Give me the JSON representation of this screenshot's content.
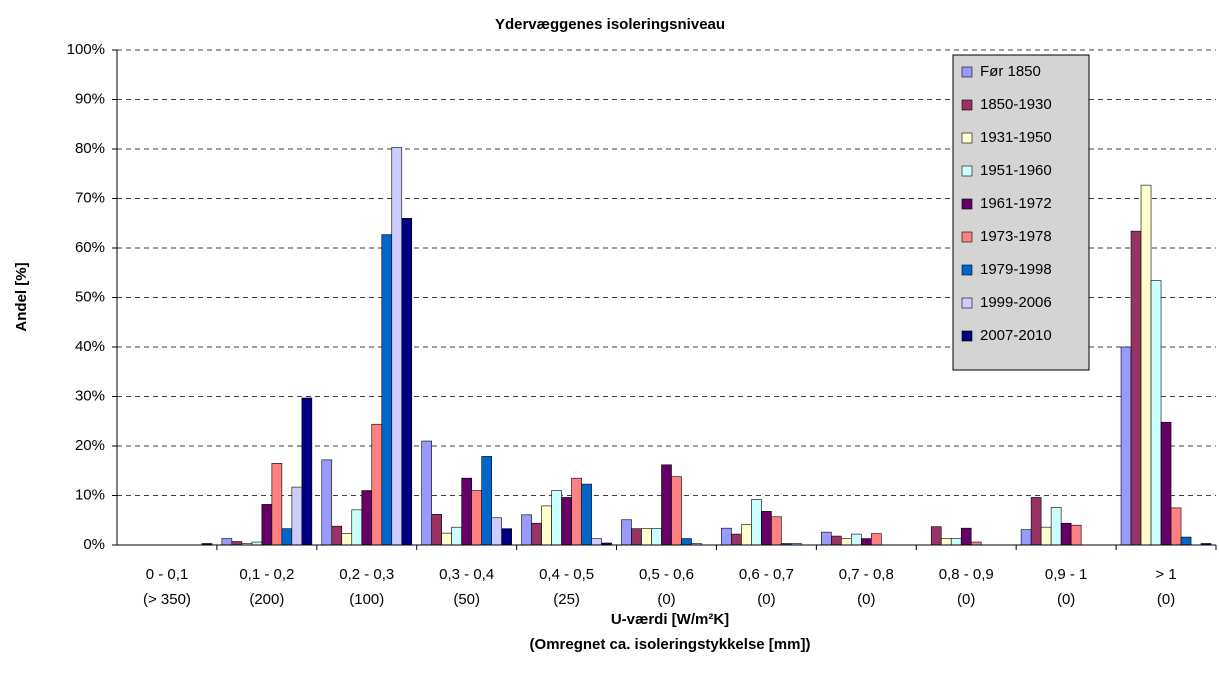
{
  "chart_data": {
    "type": "bar",
    "title": "Ydervæggenes isoleringsniveau",
    "xlabel": "U-værdi [W/m²K]",
    "xlabel2": "(Omregnet ca. isoleringstykkelse [mm])",
    "ylabel": "Andel [%]",
    "categories": [
      "0 - 0,1",
      "0,1 - 0,2",
      "0,2 - 0,3",
      "0,3 - 0,4",
      "0,4 - 0,5",
      "0,5 - 0,6",
      "0,6 - 0,7",
      "0,7 - 0,8",
      "0,8 - 0,9",
      "0,9 - 1",
      "> 1"
    ],
    "category_sublabels": [
      "(> 350)",
      "(200)",
      "(100)",
      "(50)",
      "(25)",
      "(0)",
      "(0)",
      "(0)",
      "(0)",
      "(0)",
      "(0)"
    ],
    "series": [
      {
        "name": "Før 1850",
        "color": "#9999ff",
        "values": [
          0,
          1.3,
          17.2,
          21,
          6.1,
          5.1,
          3.4,
          2.6,
          0,
          3.1,
          40
        ]
      },
      {
        "name": "1850-1930",
        "color": "#993366",
        "values": [
          0,
          0.7,
          3.8,
          6.2,
          4.4,
          3.3,
          2.2,
          1.8,
          3.7,
          9.6,
          63.4
        ]
      },
      {
        "name": "1931-1950",
        "color": "#ffffcc",
        "values": [
          0,
          0.3,
          2.3,
          2.4,
          7.9,
          3.3,
          4.1,
          1.3,
          1.3,
          3.6,
          72.7
        ]
      },
      {
        "name": "1951-1960",
        "color": "#ccffff",
        "values": [
          0,
          0.6,
          7.1,
          3.6,
          11,
          3.3,
          9.2,
          2.2,
          1.3,
          7.6,
          53.4
        ]
      },
      {
        "name": "1961-1972",
        "color": "#660066",
        "values": [
          0,
          8.2,
          11,
          13.5,
          9.6,
          16.2,
          6.8,
          1.3,
          3.4,
          4.4,
          24.8
        ]
      },
      {
        "name": "1973-1978",
        "color": "#ff8080",
        "values": [
          0,
          16.5,
          24.4,
          11,
          13.5,
          13.8,
          5.7,
          2.3,
          0.6,
          4,
          7.5
        ]
      },
      {
        "name": "1979-1998",
        "color": "#0066cc",
        "values": [
          0,
          3.3,
          62.7,
          17.9,
          12.3,
          1.3,
          0.3,
          0,
          0,
          0,
          1.6
        ]
      },
      {
        "name": "1999-2006",
        "color": "#ccccff",
        "values": [
          0,
          11.7,
          80.3,
          5.5,
          1.3,
          0.3,
          0.3,
          0,
          0,
          0,
          0
        ]
      },
      {
        "name": "2007-2010",
        "color": "#000080",
        "values": [
          0.3,
          29.7,
          66,
          3.3,
          0.4,
          0,
          0,
          0,
          0,
          0,
          0.3
        ]
      }
    ],
    "ylim": [
      0,
      100
    ],
    "yticks": [
      {
        "value": 0,
        "label": "0%"
      },
      {
        "value": 10,
        "label": "10%"
      },
      {
        "value": 20,
        "label": "20%"
      },
      {
        "value": 30,
        "label": "30%"
      },
      {
        "value": 40,
        "label": "40%"
      },
      {
        "value": 50,
        "label": "50%"
      },
      {
        "value": 60,
        "label": "60%"
      },
      {
        "value": 70,
        "label": "70%"
      },
      {
        "value": 80,
        "label": "80%"
      },
      {
        "value": 90,
        "label": "90%"
      },
      {
        "value": 100,
        "label": "100%"
      }
    ],
    "grid": true,
    "legend": "upper right"
  }
}
